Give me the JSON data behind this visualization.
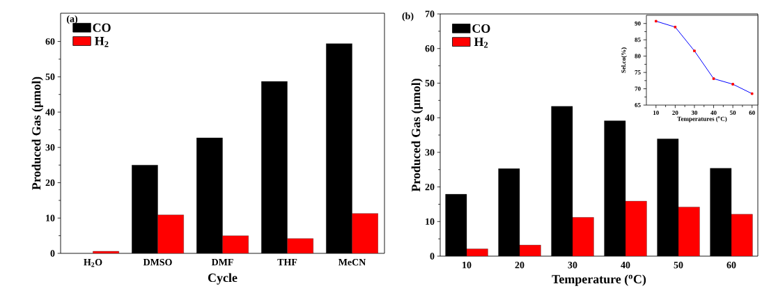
{
  "chart_data": [
    {
      "type": "bar",
      "title": "(a)",
      "xlabel": "Cycle",
      "ylabel": "Produced Gas (μmol)",
      "categories": [
        "H$_{2}$O",
        "DMSO",
        "DMF",
        "THF",
        "MeCN"
      ],
      "series": [
        {
          "name": "CO",
          "color": "#000000",
          "values": [
            null,
            25.0,
            32.7,
            48.7,
            59.4
          ]
        },
        {
          "name": "H$_{2}$",
          "color": "#ff0000",
          "values": [
            0.6,
            10.9,
            5.0,
            4.2,
            11.3
          ]
        }
      ],
      "ylim": [
        0,
        68
      ],
      "yticks": [
        0,
        10,
        20,
        30,
        40,
        50,
        60
      ],
      "legend": "top left"
    },
    {
      "type": "bar",
      "title": "(b)",
      "xlabel": "Temperature ($^{o}$C)",
      "ylabel": "Produced Gas (μmol)",
      "categories": [
        "10",
        "20",
        "30",
        "40",
        "50",
        "60"
      ],
      "series": [
        {
          "name": "CO",
          "color": "#000000",
          "values": [
            17.9,
            25.3,
            43.3,
            39.1,
            33.9,
            25.4
          ]
        },
        {
          "name": "H$_{2}$",
          "color": "#ff0000",
          "values": [
            2.1,
            3.2,
            11.2,
            15.9,
            14.2,
            12.1
          ]
        }
      ],
      "ylim": [
        0,
        70
      ],
      "yticks": [
        0,
        10,
        20,
        30,
        40,
        50,
        60,
        70
      ],
      "legend": "top left"
    },
    {
      "type": "line",
      "xlabel": "Temperatures ($^{o}$C)",
      "ylabel": "Sel.co(%)",
      "x": [
        10,
        20,
        30,
        40,
        50,
        60
      ],
      "series": [
        {
          "color": "#0000ff",
          "values": [
            90.7,
            88.9,
            81.6,
            73.1,
            71.4,
            68.5
          ]
        }
      ],
      "xlim": [
        5,
        63
      ],
      "xticks": [
        10,
        20,
        30,
        40,
        50,
        60
      ],
      "ylim": [
        65,
        92.5
      ],
      "yticks": [
        65,
        70,
        75,
        80,
        85,
        90
      ],
      "marker": "square"
    }
  ]
}
